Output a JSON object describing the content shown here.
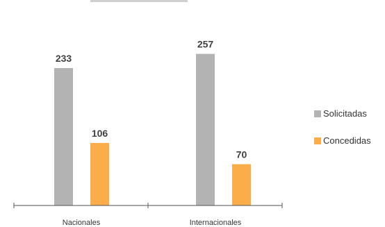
{
  "chart_data": {
    "type": "bar",
    "categories": [
      "Nacionales",
      "Internacionales"
    ],
    "series": [
      {
        "name": "Solicitadas",
        "values": [
          233,
          257
        ],
        "color": "#b3b3b3"
      },
      {
        "name": "Concedidas",
        "values": [
          106,
          70
        ],
        "color": "#fbad4a"
      }
    ],
    "ylim": [
      0,
      330
    ],
    "grid": false,
    "legend_position": "right",
    "data_labels": true
  }
}
